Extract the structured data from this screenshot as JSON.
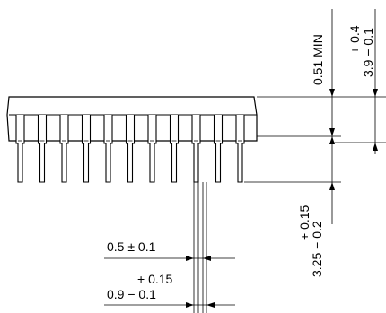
{
  "dimensions": {
    "body_height_min": "0.51 MIN",
    "total_height_tol_plus": "+ 0.4",
    "total_height": "3.9 − 0.1",
    "lead_length_tol_plus": "+ 0.15",
    "lead_length": "3.25 − 0.2",
    "lead_width_narrow": "0.5 ± 0.1",
    "lead_width_wide_tol_plus": "+ 0.15",
    "lead_width_wide": "0.9 − 0.1"
  },
  "package": {
    "lead_count_visible": 11
  }
}
